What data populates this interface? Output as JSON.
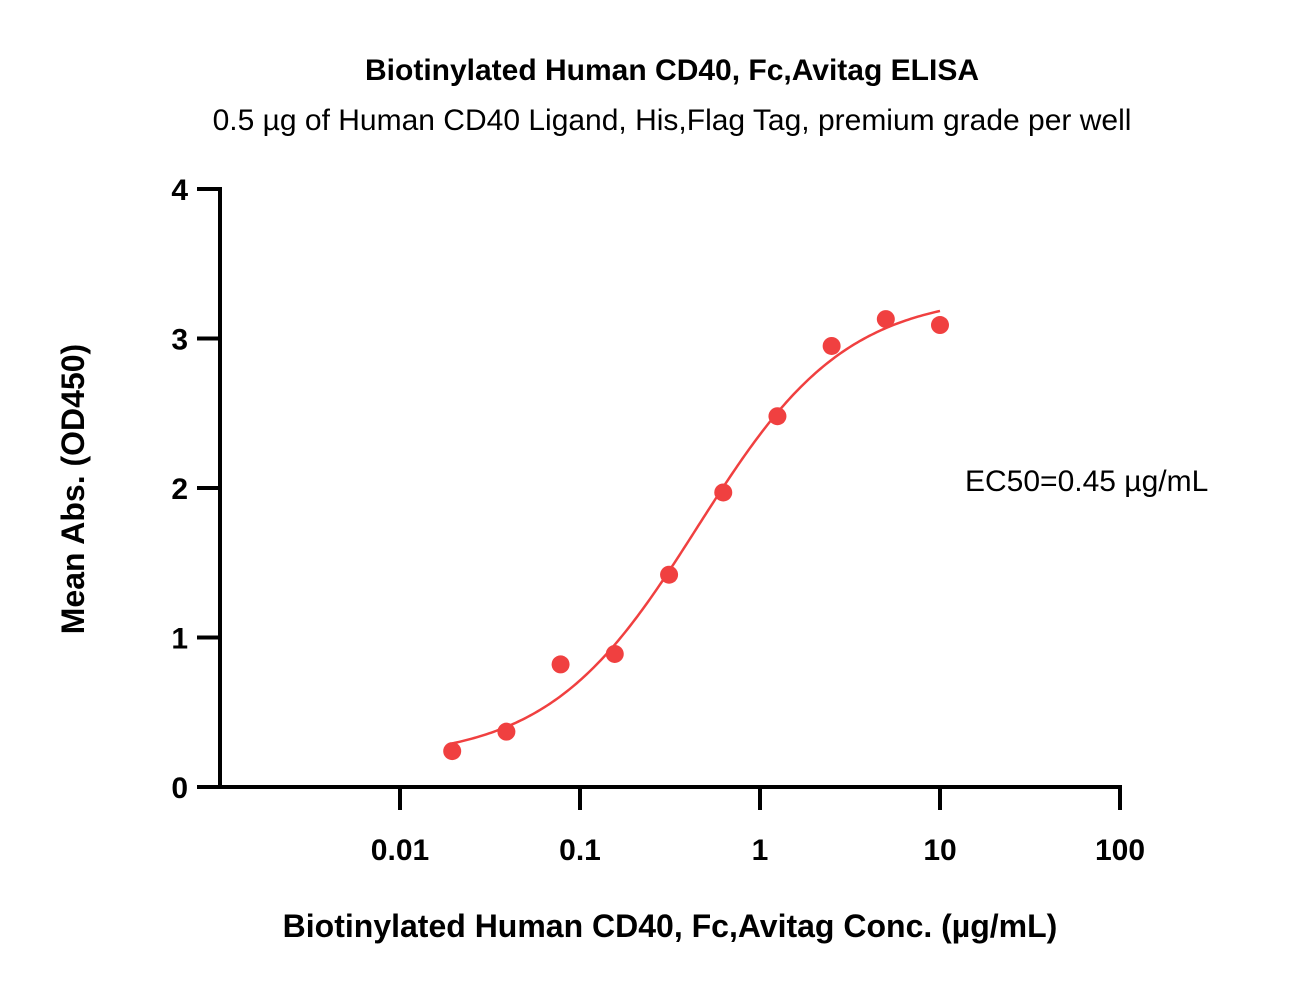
{
  "chart_data": {
    "type": "scatter",
    "title": "Biotinylated Human CD40, Fc,Avitag ELISA",
    "subtitle": "0.5 µg of Human CD40 Ligand, His,Flag Tag, premium grade per well",
    "xlabel": "Biotinylated Human CD40, Fc,Avitag Conc. (µg/mL)",
    "ylabel": "Mean Abs. (OD450)",
    "xscale": "log",
    "xlim": [
      0.001,
      100
    ],
    "ylim": [
      0,
      4
    ],
    "xticks": [
      0.01,
      0.1,
      1,
      10,
      100
    ],
    "xtick_labels": [
      "0.01",
      "0.1",
      "1",
      "10",
      "100"
    ],
    "yticks": [
      0,
      1,
      2,
      3,
      4
    ],
    "ytick_labels": [
      "0",
      "1",
      "2",
      "3",
      "4"
    ],
    "grid": false,
    "annotation": "EC50=0.45 µg/mL",
    "series": [
      {
        "color": "#f04040",
        "x": [
          0.0195,
          0.039,
          0.078,
          0.156,
          0.3125,
          0.625,
          1.25,
          2.5,
          5,
          10
        ],
        "y": [
          0.24,
          0.37,
          0.82,
          0.89,
          1.42,
          1.97,
          2.48,
          2.95,
          3.13,
          3.09
        ]
      }
    ],
    "fit": {
      "type": "4PL",
      "color": "#f04040",
      "bottom": 0.18,
      "top": 3.3,
      "ec50": 0.45,
      "hill": 1.05,
      "x_range": [
        0.0195,
        10
      ]
    }
  }
}
